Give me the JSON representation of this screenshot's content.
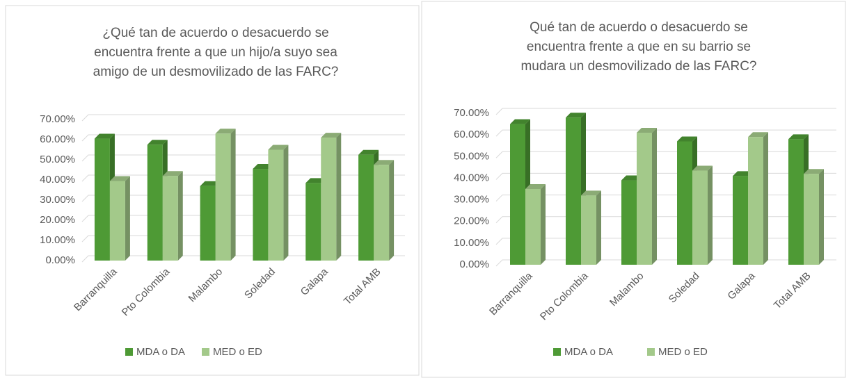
{
  "chart_data": [
    {
      "type": "bar3d",
      "title": [
        "¿Qué tan de acuerdo o desacuerdo se",
        "encuentra frente a que un hijo/a suyo sea",
        "amigo de un desmovilizado de las FARC?"
      ],
      "categories": [
        "Barranquilla",
        "Pto Colombia",
        "Malambo",
        "Soledad",
        "Galapa",
        "Total AMB"
      ],
      "series": [
        {
          "name": "MDA o DA",
          "color": "#4e9a35",
          "values": [
            60.5,
            57.5,
            37,
            45.5,
            38.5,
            52.5
          ]
        },
        {
          "name": "MED o ED",
          "color": "#a3c98a",
          "values": [
            39.5,
            42,
            63,
            55,
            61,
            47.5
          ]
        }
      ],
      "ylim": [
        0,
        70
      ],
      "yticks": [
        {
          "value": 0,
          "label": "0.00%"
        },
        {
          "value": 10,
          "label": "10.00%"
        },
        {
          "value": 20,
          "label": "20.00%"
        },
        {
          "value": 30,
          "label": "30.00%"
        },
        {
          "value": 40,
          "label": "40.00%"
        },
        {
          "value": 50,
          "label": "50.00%"
        },
        {
          "value": 60,
          "label": "60.00%"
        },
        {
          "value": 70,
          "label": "70.00%"
        }
      ],
      "grid": true,
      "legend": "bottom"
    },
    {
      "type": "bar3d",
      "title": [
        "Qué tan de acuerdo o desacuerdo se",
        "encuentra frente a que en su barrio se",
        "mudara un desmovilizado de las FARC?"
      ],
      "categories": [
        "Barranquilla",
        "Pto Colombia",
        "Malambo",
        "Soledad",
        "Galapa",
        "Total AMB"
      ],
      "series": [
        {
          "name": "MDA o DA",
          "color": "#4e9a35",
          "values": [
            65,
            68,
            39,
            57,
            41,
            58
          ]
        },
        {
          "name": "MED o ED",
          "color": "#a3c98a",
          "values": [
            35,
            32,
            61,
            43.5,
            59,
            42
          ]
        }
      ],
      "ylim": [
        0,
        70
      ],
      "yticks": [
        {
          "value": 0,
          "label": "0.00%"
        },
        {
          "value": 10,
          "label": "10.00%"
        },
        {
          "value": 20,
          "label": "20.00%"
        },
        {
          "value": 30,
          "label": "30.00%"
        },
        {
          "value": 40,
          "label": "40.00%"
        },
        {
          "value": 50,
          "label": "50.00%"
        },
        {
          "value": 60,
          "label": "60.00%"
        },
        {
          "value": 70,
          "label": "70.00%"
        }
      ],
      "grid": true,
      "legend": "bottom"
    }
  ]
}
